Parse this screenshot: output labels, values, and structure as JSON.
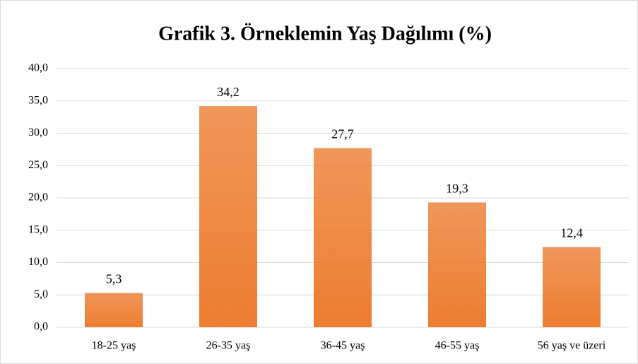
{
  "chart_data": {
    "type": "bar",
    "title": "Grafik 3. Örneklemin Yaş Dağılımı (%)",
    "categories": [
      "18-25 yaş",
      "26-35 yaş",
      "36-45 yaş",
      "46-55 yaş",
      "56 yaş ve üzeri"
    ],
    "values": [
      5.3,
      34.2,
      27.7,
      19.3,
      12.4
    ],
    "value_labels": [
      "5,3",
      "34,2",
      "27,7",
      "19,3",
      "12,4"
    ],
    "color": "#ed7d31",
    "ylim": [
      0,
      40
    ],
    "yticks": [
      {
        "value": 0,
        "label": "0,0"
      },
      {
        "value": 5,
        "label": "5,0"
      },
      {
        "value": 10,
        "label": "10,0"
      },
      {
        "value": 15,
        "label": "15,0"
      },
      {
        "value": 20,
        "label": "20,0"
      },
      {
        "value": 25,
        "label": "25,0"
      },
      {
        "value": 30,
        "label": "30,0"
      },
      {
        "value": 35,
        "label": "35,0"
      },
      {
        "value": 40,
        "label": "40,0"
      }
    ],
    "grid": true
  }
}
